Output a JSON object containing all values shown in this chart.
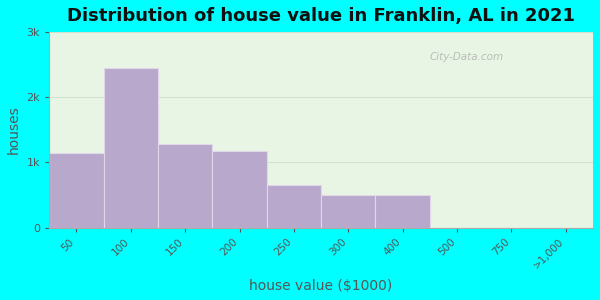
{
  "title": "Distribution of house value in Franklin, AL in 2021",
  "xlabel": "house value ($1000)",
  "ylabel": "houses",
  "bar_categories": [
    "50",
    "100",
    "150",
    "200",
    "250",
    "300",
    "400",
    "500",
    "750",
    ">1,000"
  ],
  "bar_values": [
    1150,
    2450,
    1280,
    1180,
    650,
    500,
    500,
    0,
    0,
    0
  ],
  "bar_color": "#b8a8cc",
  "bar_edgecolor": "#e0d8e8",
  "background_outer": "#00ffff",
  "background_inner": "#e8f5e4",
  "yticks": [
    0,
    1000,
    2000,
    3000
  ],
  "ytick_labels": [
    "0",
    "1k",
    "2k",
    "3k"
  ],
  "ylim": [
    0,
    3000
  ],
  "title_fontsize": 13,
  "axis_label_fontsize": 10,
  "watermark": "City-Data.com",
  "tick_positions": [
    0,
    1,
    2,
    3,
    4,
    5,
    6,
    7,
    8,
    9
  ],
  "figsize": [
    6.0,
    3.0
  ],
  "dpi": 100
}
